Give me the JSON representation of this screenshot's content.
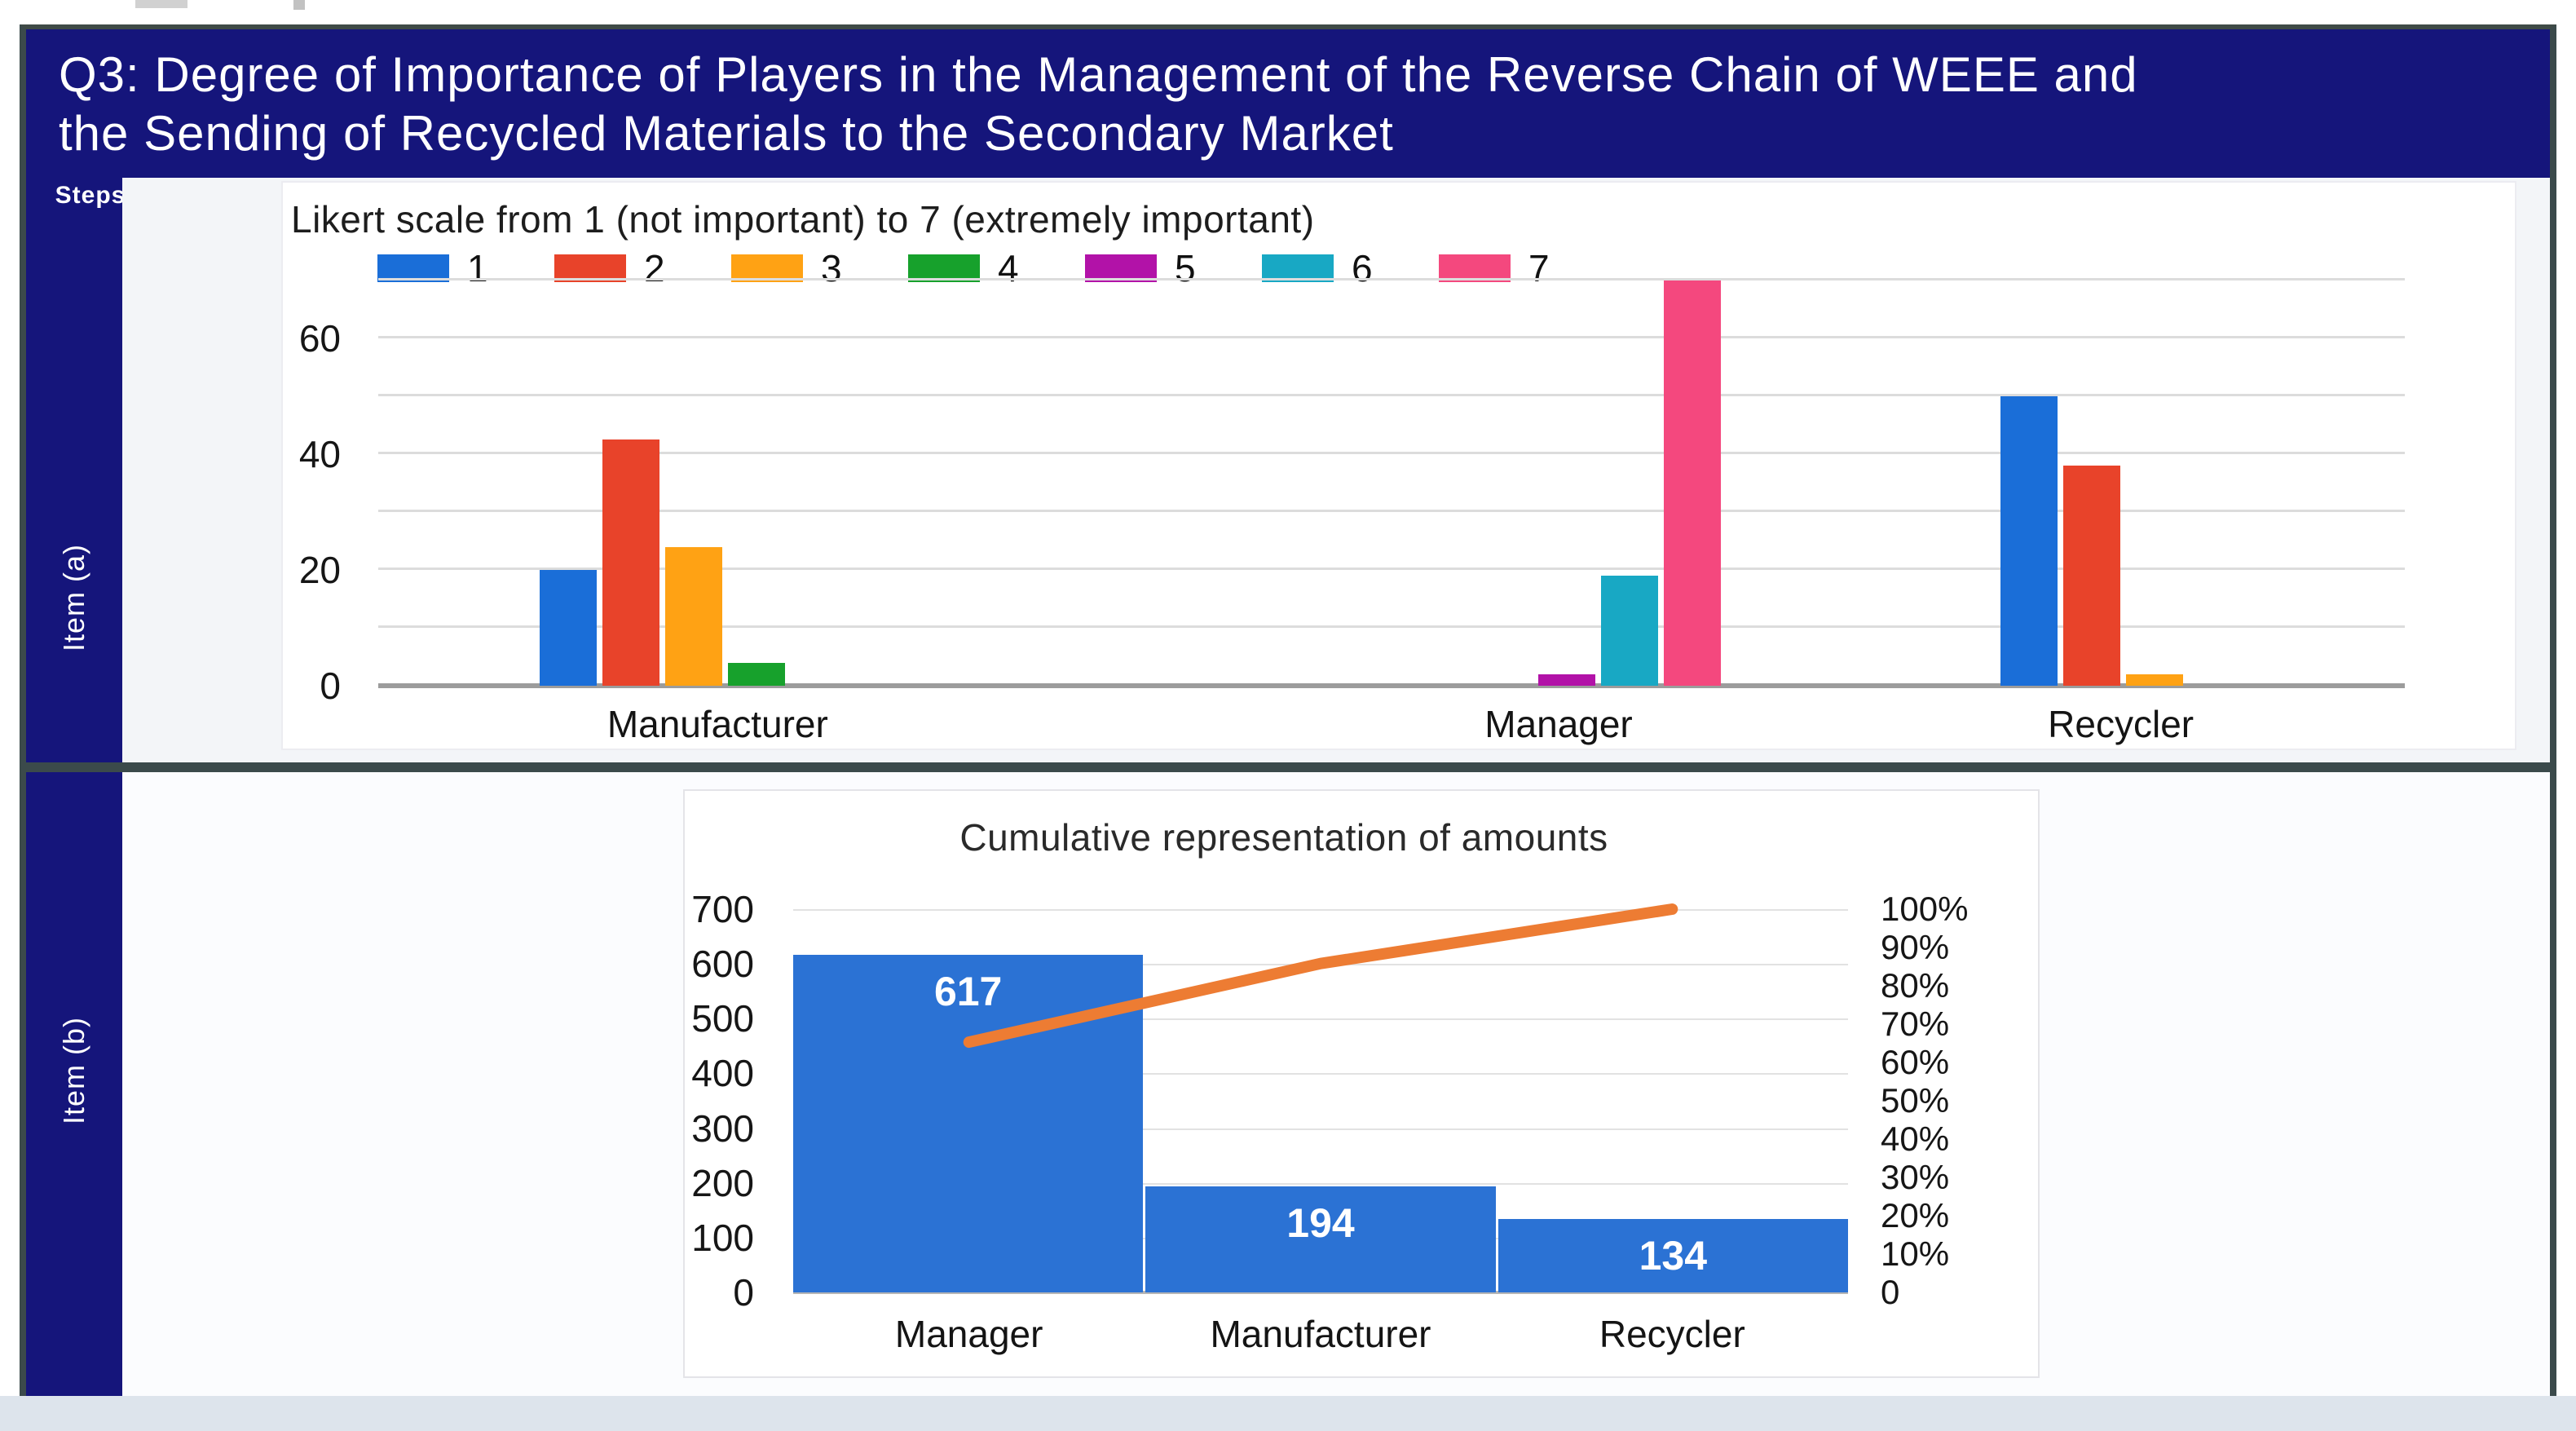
{
  "header": {
    "bg_color": "#15157b",
    "lines": [
      "Q3: Degree of Importance of Players in the Management of the Reverse Chain of WEEE and",
      "the Sending of Recycled Materials to the Secondary Market"
    ]
  },
  "sidebar": {
    "steps_label": "Steps",
    "item_a_label": "Item (a)",
    "item_b_label": "Item (b)"
  },
  "chart_data": [
    {
      "type": "bar",
      "title": "Likert scale from 1 (not important) to 7 (extremely important)",
      "categories": [
        "Manufacturer",
        "Manager",
        "Recycler"
      ],
      "series": [
        {
          "name": "1",
          "color": "#1a6ed8",
          "values": [
            20,
            0,
            50
          ]
        },
        {
          "name": "2",
          "color": "#e8432a",
          "values": [
            42.5,
            0,
            38
          ]
        },
        {
          "name": "3",
          "color": "#ffa214",
          "values": [
            24,
            0,
            2
          ]
        },
        {
          "name": "4",
          "color": "#17a12c",
          "values": [
            4,
            0,
            0
          ]
        },
        {
          "name": "5",
          "color": "#b212a8",
          "values": [
            0,
            2,
            0
          ]
        },
        {
          "name": "6",
          "color": "#18a8c4",
          "values": [
            0,
            19,
            0
          ]
        },
        {
          "name": "7",
          "color": "#f4487e",
          "values": [
            0,
            70,
            0
          ]
        }
      ],
      "ylim": [
        0,
        70
      ],
      "grid_step": 10,
      "labeled_yticks": [
        0,
        20,
        40,
        60
      ],
      "legend_position": "top",
      "grid": true,
      "gridline_color": "#dcdcdc",
      "baseline_color": "#9c9c9c"
    },
    {
      "type": "pareto-bar-line",
      "title": "Cumulative representation of amounts",
      "categories": [
        "Manager",
        "Manufacturer",
        "Recycler"
      ],
      "bar_values": [
        617,
        194,
        134
      ],
      "bar_labels": [
        "617",
        "194",
        "134"
      ],
      "bar_color": "#2b72d4",
      "line_cumulative_pct": [
        65.3,
        85.8,
        100
      ],
      "line_color": "#ed7c33",
      "left_axis": {
        "min": 0,
        "max": 700,
        "step": 100
      },
      "right_axis": {
        "min": 0,
        "max": 100,
        "step": 10,
        "suffix": "%",
        "min_label": "0"
      },
      "grid": true
    }
  ]
}
